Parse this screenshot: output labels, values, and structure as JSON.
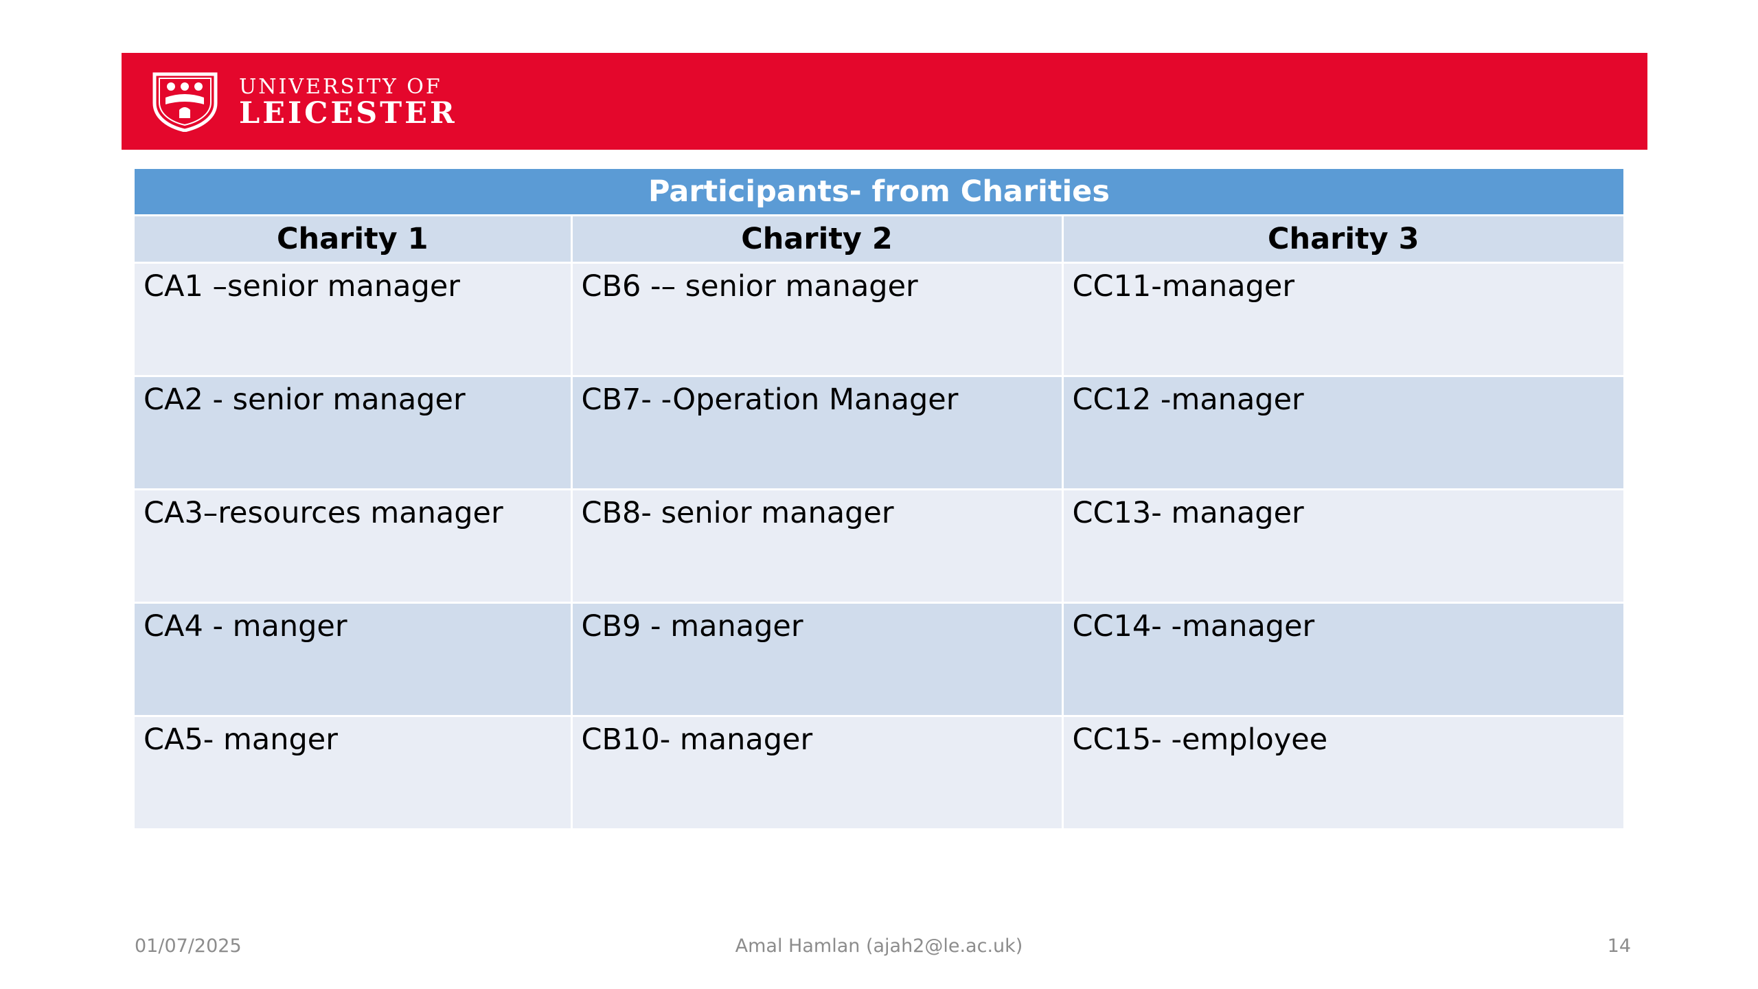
{
  "banner": {
    "logo_line1": "UNIVERSITY OF",
    "logo_line2": "LEICESTER",
    "logo_icon": "shield-icon",
    "color": "#e4072c"
  },
  "table": {
    "title": "Participants- from Charities",
    "title_color": "#5b9bd5",
    "headers": [
      "Charity 1",
      "Charity 2",
      "Charity 3"
    ],
    "rows": [
      [
        "CA1 –senior manager",
        "CB6 -– senior manager",
        "CC11-manager"
      ],
      [
        "CA2 - senior manager",
        "CB7- -Operation Manager",
        "CC12 -manager"
      ],
      [
        "CA3–resources manager",
        "CB8- senior manager",
        "CC13- manager"
      ],
      [
        "CA4 - manger",
        "CB9 - manager",
        "CC14- -manager"
      ],
      [
        "CA5- manger",
        "CB10- manager",
        "CC15- -employee"
      ]
    ]
  },
  "footer": {
    "date": "01/07/2025",
    "author": "Amal Hamlan  (ajah2@le.ac.uk)",
    "page": "14"
  }
}
